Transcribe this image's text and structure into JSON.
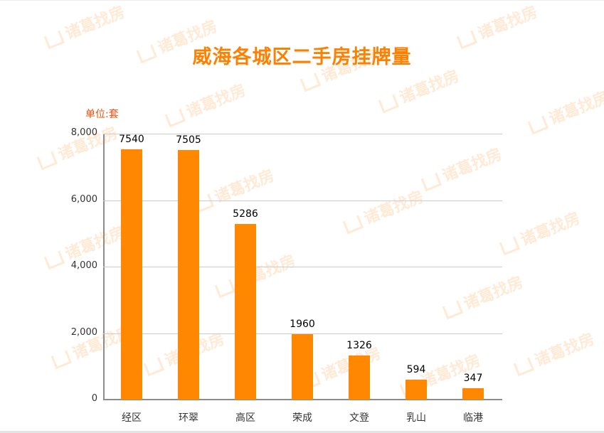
{
  "title": "威海各城区二手房挂牌量",
  "unit_label": "单位:套",
  "watermark": "诸葛找房",
  "colors": {
    "bar": "#ff8800",
    "title": "#ff8000",
    "unit": "#e9500e"
  },
  "y_ticks": [
    "0",
    "2,000",
    "4,000",
    "6,000",
    "8,000"
  ],
  "bars": [
    {
      "category": "经区",
      "value": 7540,
      "label": "7540"
    },
    {
      "category": "环翠",
      "value": 7505,
      "label": "7505"
    },
    {
      "category": "高区",
      "value": 5286,
      "label": "5286"
    },
    {
      "category": "荣成",
      "value": 1960,
      "label": "1960"
    },
    {
      "category": "文登",
      "value": 1326,
      "label": "1326"
    },
    {
      "category": "乳山",
      "value": 594,
      "label": "594"
    },
    {
      "category": "临港",
      "value": 347,
      "label": "347"
    }
  ],
  "chart_data": {
    "type": "bar",
    "title": "威海各城区二手房挂牌量",
    "categories": [
      "经区",
      "环翠",
      "高区",
      "荣成",
      "文登",
      "乳山",
      "临港"
    ],
    "values": [
      7540,
      7505,
      5286,
      1960,
      1326,
      594,
      347
    ],
    "xlabel": "",
    "ylabel": "单位:套",
    "ylim": [
      0,
      8000
    ],
    "y_ticks": [
      0,
      2000,
      4000,
      6000,
      8000
    ],
    "grid": true,
    "legend": null,
    "data_labels": true
  }
}
